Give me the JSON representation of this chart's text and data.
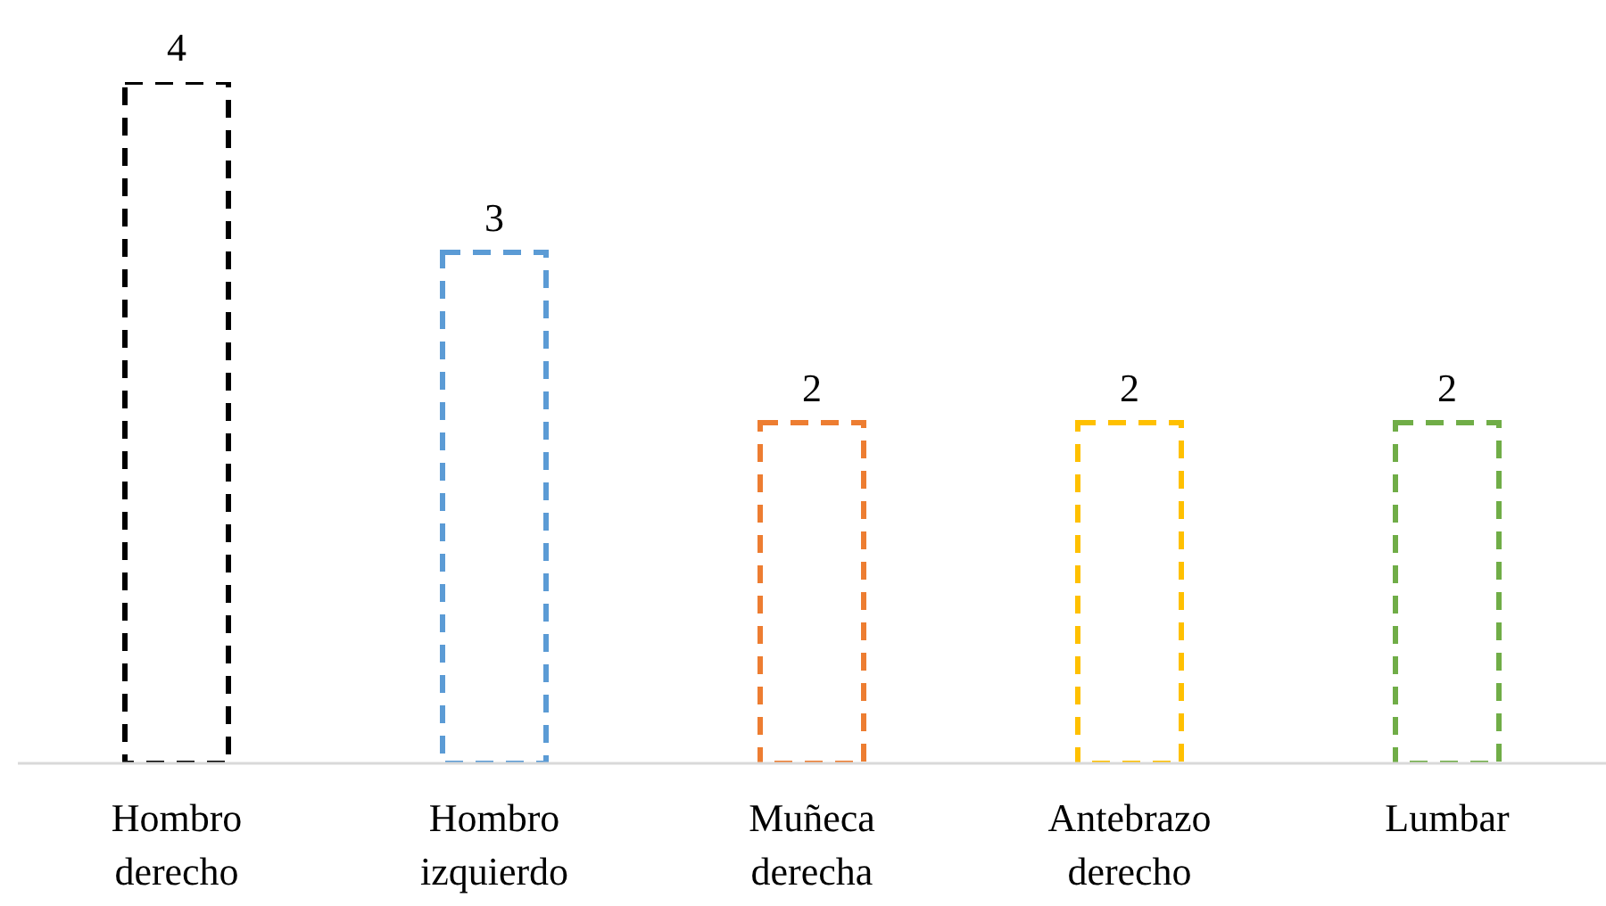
{
  "chart_data": {
    "type": "bar",
    "categories": [
      "Hombro derecho",
      "Hombro izquierdo",
      "Muñeca derecha",
      "Antebrazo derecho",
      "Lumbar"
    ],
    "values": [
      4,
      3,
      2,
      2,
      2
    ],
    "colors": [
      "#000000",
      "#5b9bd5",
      "#ed7d31",
      "#ffc000",
      "#70ad47"
    ],
    "data_labels": true,
    "line_style": "dashed",
    "tick_labels": "x"
  }
}
